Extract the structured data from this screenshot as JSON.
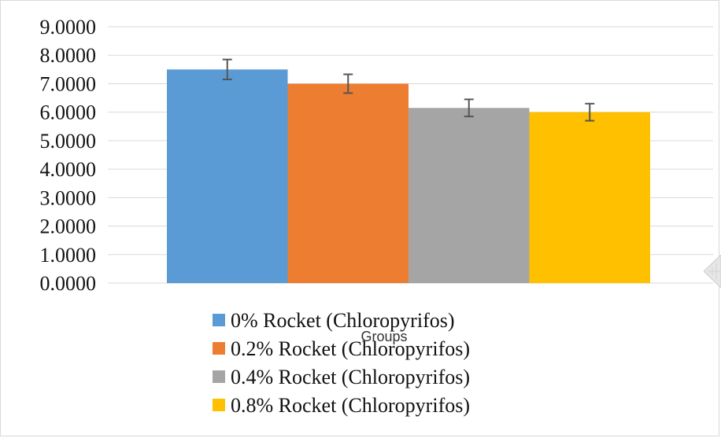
{
  "chart_data": {
    "type": "bar",
    "xlabel": "Groups",
    "ylabel": "",
    "title": "",
    "ylim": [
      0,
      9
    ],
    "ytick_step": 1,
    "ytick_format_decimals": 4,
    "grid": true,
    "legend_position": "bottom",
    "categories": [
      ""
    ],
    "series": [
      {
        "name": "0% Rocket (Chloropyrifos)",
        "values": [
          7.5
        ],
        "error": [
          0.35
        ],
        "color": "#5b9bd5"
      },
      {
        "name": "0.2% Rocket (Chloropyrifos)",
        "values": [
          7.0
        ],
        "error": [
          0.33
        ],
        "color": "#ed7d31"
      },
      {
        "name": "0.4% Rocket (Chloropyrifos)",
        "values": [
          6.15
        ],
        "error": [
          0.3
        ],
        "color": "#a5a5a5"
      },
      {
        "name": "0.8% Rocket (Chloropyrifos)",
        "values": [
          6.0
        ],
        "error": [
          0.3
        ],
        "color": "#ffc000"
      }
    ]
  }
}
